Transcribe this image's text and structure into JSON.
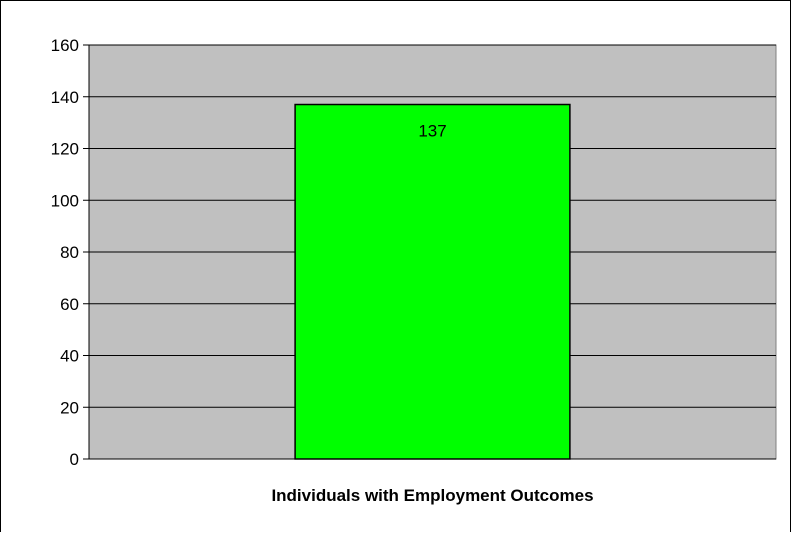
{
  "chart_data": {
    "type": "bar",
    "categories": [
      ""
    ],
    "values": [
      137
    ],
    "title": "",
    "xlabel": "Individuals with Employment Outcomes",
    "ylabel": "",
    "ylim": [
      0,
      160
    ],
    "yticks": [
      0,
      20,
      40,
      60,
      80,
      100,
      120,
      140,
      160
    ],
    "grid": true,
    "legend": "none",
    "data_labels": [
      "137"
    ],
    "colors": {
      "plot_background": "#c0c0c0",
      "bar_fill": "#00ff00",
      "bar_stroke": "#000000",
      "gridline": "#000000"
    }
  }
}
